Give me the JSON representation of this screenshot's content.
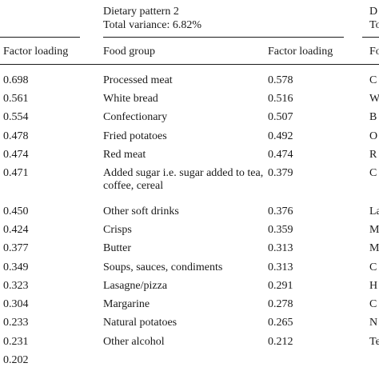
{
  "table": {
    "pattern2": {
      "title": "Dietary pattern 2",
      "variance": "Total variance: 6.82%"
    },
    "pattern3": {
      "title_fragment": "D",
      "variance_fragment": "To"
    },
    "headers": {
      "factor_loading_1": "Factor loading",
      "food_group_2": "Food group",
      "factor_loading_2": "Factor loading",
      "food_group_3_fragment": "Fo"
    },
    "col1_loadings": [
      "0.698",
      "0.561",
      "0.554",
      "0.478",
      "0.474",
      "0.471",
      "0.450",
      "0.424",
      "0.377",
      "0.349",
      "0.323",
      "0.304",
      "0.233",
      "0.231",
      "0.202"
    ],
    "pattern2_rows": [
      {
        "food": "Processed meat",
        "loading": "0.578"
      },
      {
        "food": "White bread",
        "loading": "0.516"
      },
      {
        "food": "Confectionary",
        "loading": "0.507"
      },
      {
        "food": "Fried potatoes",
        "loading": "0.492"
      },
      {
        "food": "Red meat",
        "loading": "0.474"
      },
      {
        "food": "Added sugar i.e. sugar added to tea, coffee, cereal",
        "loading": "0.379"
      },
      {
        "food": "Other soft drinks",
        "loading": "0.376"
      },
      {
        "food": "Crisps",
        "loading": "0.359"
      },
      {
        "food": "Butter",
        "loading": "0.313"
      },
      {
        "food": "Soups, sauces, condiments",
        "loading": "0.313"
      },
      {
        "food": "Lasagne/pizza",
        "loading": "0.291"
      },
      {
        "food": "Margarine",
        "loading": "0.278"
      },
      {
        "food": "Natural potatoes",
        "loading": "0.265"
      },
      {
        "food": "Other alcohol",
        "loading": "0.212"
      }
    ],
    "col3_fragments": [
      "C",
      "W",
      "B",
      "O",
      "R",
      "C",
      "La",
      "M",
      "M",
      "C",
      "H",
      "C",
      "N",
      "Te"
    ]
  }
}
